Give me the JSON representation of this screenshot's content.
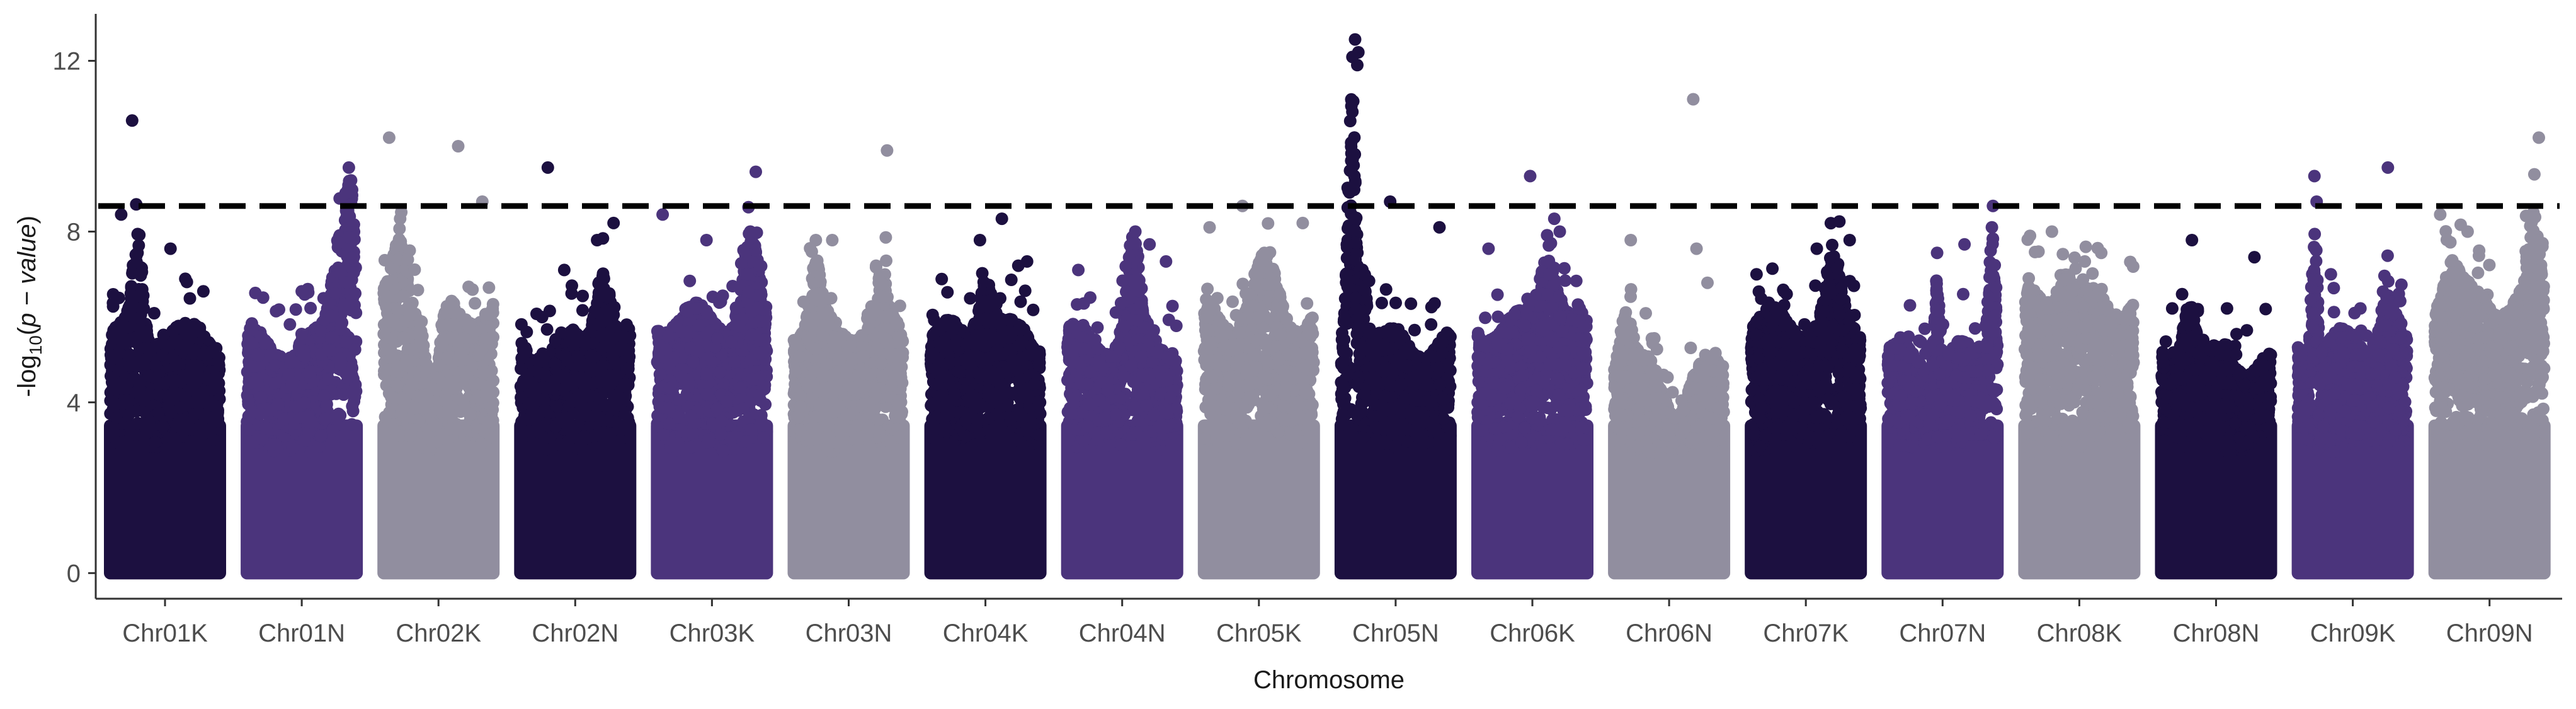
{
  "chart_data": {
    "type": "scatter",
    "subtype": "manhattan",
    "title": "",
    "xlabel": "Chromosome",
    "ylabel_parts": [
      "-log",
      "10",
      "(",
      "p − value",
      ")"
    ],
    "ylim": [
      -0.6,
      13.1
    ],
    "yticks": [
      0,
      4,
      8,
      12
    ],
    "threshold": 8.6,
    "grid": false,
    "legend": "none",
    "colors": [
      "#1c1040",
      "#4b347c",
      "#918e9f"
    ],
    "threshold_color": "#000000",
    "chromosomes": [
      {
        "name": "Chr01K",
        "base": 5.6,
        "bumps": [
          [
            0.25,
            2.3,
            0.06
          ]
        ],
        "peaks": [
          [
            0.2,
            10.6
          ],
          [
            0.1,
            8.4
          ],
          [
            0.55,
            7.6
          ],
          [
            0.85,
            6.6
          ]
        ]
      },
      {
        "name": "Chr01N",
        "base": 5.4,
        "bumps": [
          [
            0.85,
            2.8,
            0.1
          ],
          [
            0.95,
            3.4,
            0.05
          ]
        ],
        "peaks": [
          [
            0.93,
            9.5
          ],
          [
            0.95,
            9.2
          ],
          [
            0.9,
            8.9
          ],
          [
            0.5,
            6.6
          ]
        ]
      },
      {
        "name": "Chr02K",
        "base": 6.2,
        "bumps": [
          [
            0.15,
            1.8,
            0.1
          ],
          [
            0.45,
            -2.2,
            0.08
          ]
        ],
        "peaks": [
          [
            0.05,
            10.2
          ],
          [
            0.68,
            10.0
          ],
          [
            0.9,
            8.7
          ],
          [
            0.15,
            8.3
          ]
        ]
      },
      {
        "name": "Chr02N",
        "base": 5.4,
        "bumps": [
          [
            0.75,
            2.0,
            0.1
          ]
        ],
        "peaks": [
          [
            0.25,
            9.5
          ],
          [
            0.85,
            8.2
          ],
          [
            0.7,
            7.8
          ],
          [
            0.4,
            7.1
          ]
        ]
      },
      {
        "name": "Chr03K",
        "base": 6.0,
        "bumps": [
          [
            0.85,
            1.6,
            0.1
          ]
        ],
        "peaks": [
          [
            0.9,
            9.4
          ],
          [
            0.05,
            8.4
          ],
          [
            0.85,
            8.0
          ],
          [
            0.45,
            7.8
          ]
        ]
      },
      {
        "name": "Chr03N",
        "base": 5.8,
        "bumps": [
          [
            0.2,
            1.3,
            0.06
          ],
          [
            0.8,
            1.1,
            0.06
          ]
        ],
        "peaks": [
          [
            0.85,
            9.9
          ],
          [
            0.2,
            7.8
          ],
          [
            0.35,
            7.8
          ],
          [
            0.75,
            7.2
          ]
        ]
      },
      {
        "name": "Chr04K",
        "base": 5.6,
        "bumps": [
          [
            0.5,
            1.5,
            0.1
          ]
        ],
        "peaks": [
          [
            0.65,
            8.3
          ],
          [
            0.45,
            7.8
          ],
          [
            0.8,
            7.2
          ],
          [
            0.88,
            7.3
          ]
        ]
      },
      {
        "name": "Chr04N",
        "base": 5.5,
        "bumps": [
          [
            0.6,
            2.2,
            0.08
          ]
        ],
        "peaks": [
          [
            0.62,
            8.0
          ],
          [
            0.75,
            7.7
          ],
          [
            0.1,
            7.1
          ],
          [
            0.9,
            7.3
          ]
        ]
      },
      {
        "name": "Chr05K",
        "base": 6.0,
        "bumps": [
          [
            0.55,
            1.2,
            0.15
          ]
        ],
        "peaks": [
          [
            0.05,
            8.1
          ],
          [
            0.35,
            8.6
          ],
          [
            0.9,
            8.2
          ],
          [
            0.55,
            7.5
          ]
        ]
      },
      {
        "name": "Chr05N",
        "base": 5.4,
        "bumps": [
          [
            0.1,
            6.6,
            0.045
          ],
          [
            0.2,
            2.0,
            0.06
          ]
        ],
        "peaks": [
          [
            0.13,
            12.5
          ],
          [
            0.16,
            12.2
          ],
          [
            0.15,
            11.9
          ],
          [
            0.45,
            8.7
          ],
          [
            0.9,
            8.1
          ]
        ]
      },
      {
        "name": "Chr06K",
        "base": 5.8,
        "bumps": [
          [
            0.65,
            2.0,
            0.12
          ]
        ],
        "peaks": [
          [
            0.48,
            9.3
          ],
          [
            0.7,
            8.3
          ],
          [
            0.75,
            8.0
          ],
          [
            0.1,
            7.6
          ]
        ]
      },
      {
        "name": "Chr06N",
        "base": 4.8,
        "bumps": [
          [
            0.1,
            1.5,
            0.08
          ],
          [
            0.55,
            -0.8,
            0.15
          ]
        ],
        "peaks": [
          [
            0.72,
            11.1
          ],
          [
            0.15,
            7.8
          ],
          [
            0.75,
            7.6
          ],
          [
            0.85,
            6.8
          ]
        ]
      },
      {
        "name": "Chr07K",
        "base": 5.9,
        "bumps": [
          [
            0.75,
            1.5,
            0.08
          ]
        ],
        "peaks": [
          [
            0.9,
            7.8
          ],
          [
            0.6,
            7.6
          ],
          [
            0.05,
            7.0
          ],
          [
            0.3,
            6.6
          ]
        ]
      },
      {
        "name": "Chr07N",
        "base": 5.1,
        "bumps": [
          [
            0.95,
            3.2,
            0.05
          ],
          [
            0.45,
            2.2,
            0.03
          ]
        ],
        "peaks": [
          [
            0.96,
            8.6
          ],
          [
            0.95,
            8.1
          ],
          [
            0.45,
            7.5
          ],
          [
            0.7,
            7.7
          ]
        ]
      },
      {
        "name": "Chr08K",
        "base": 6.4,
        "bumps": [
          [
            0.35,
            1.0,
            0.1
          ]
        ],
        "peaks": [
          [
            0.05,
            7.9
          ],
          [
            0.25,
            8.0
          ],
          [
            0.55,
            7.3
          ],
          [
            0.7,
            7.5
          ]
        ]
      },
      {
        "name": "Chr08N",
        "base": 5.0,
        "bumps": [
          [
            0.25,
            1.7,
            0.08
          ]
        ],
        "peaks": [
          [
            0.28,
            7.8
          ],
          [
            0.1,
            6.2
          ],
          [
            0.6,
            6.2
          ],
          [
            0.85,
            7.4
          ]
        ]
      },
      {
        "name": "Chr09K",
        "base": 5.4,
        "bumps": [
          [
            0.15,
            3.2,
            0.035
          ],
          [
            0.8,
            1.2,
            0.1
          ]
        ],
        "peaks": [
          [
            0.15,
            9.3
          ],
          [
            0.82,
            9.5
          ],
          [
            0.17,
            8.7
          ],
          [
            0.3,
            7.0
          ]
        ]
      },
      {
        "name": "Chr09N",
        "base": 6.4,
        "bumps": [
          [
            0.9,
            1.8,
            0.08
          ],
          [
            0.15,
            1.0,
            0.1
          ]
        ],
        "peaks": [
          [
            0.95,
            10.2
          ],
          [
            0.3,
            8.0
          ],
          [
            0.05,
            8.4
          ],
          [
            0.9,
            7.8
          ]
        ]
      }
    ]
  }
}
